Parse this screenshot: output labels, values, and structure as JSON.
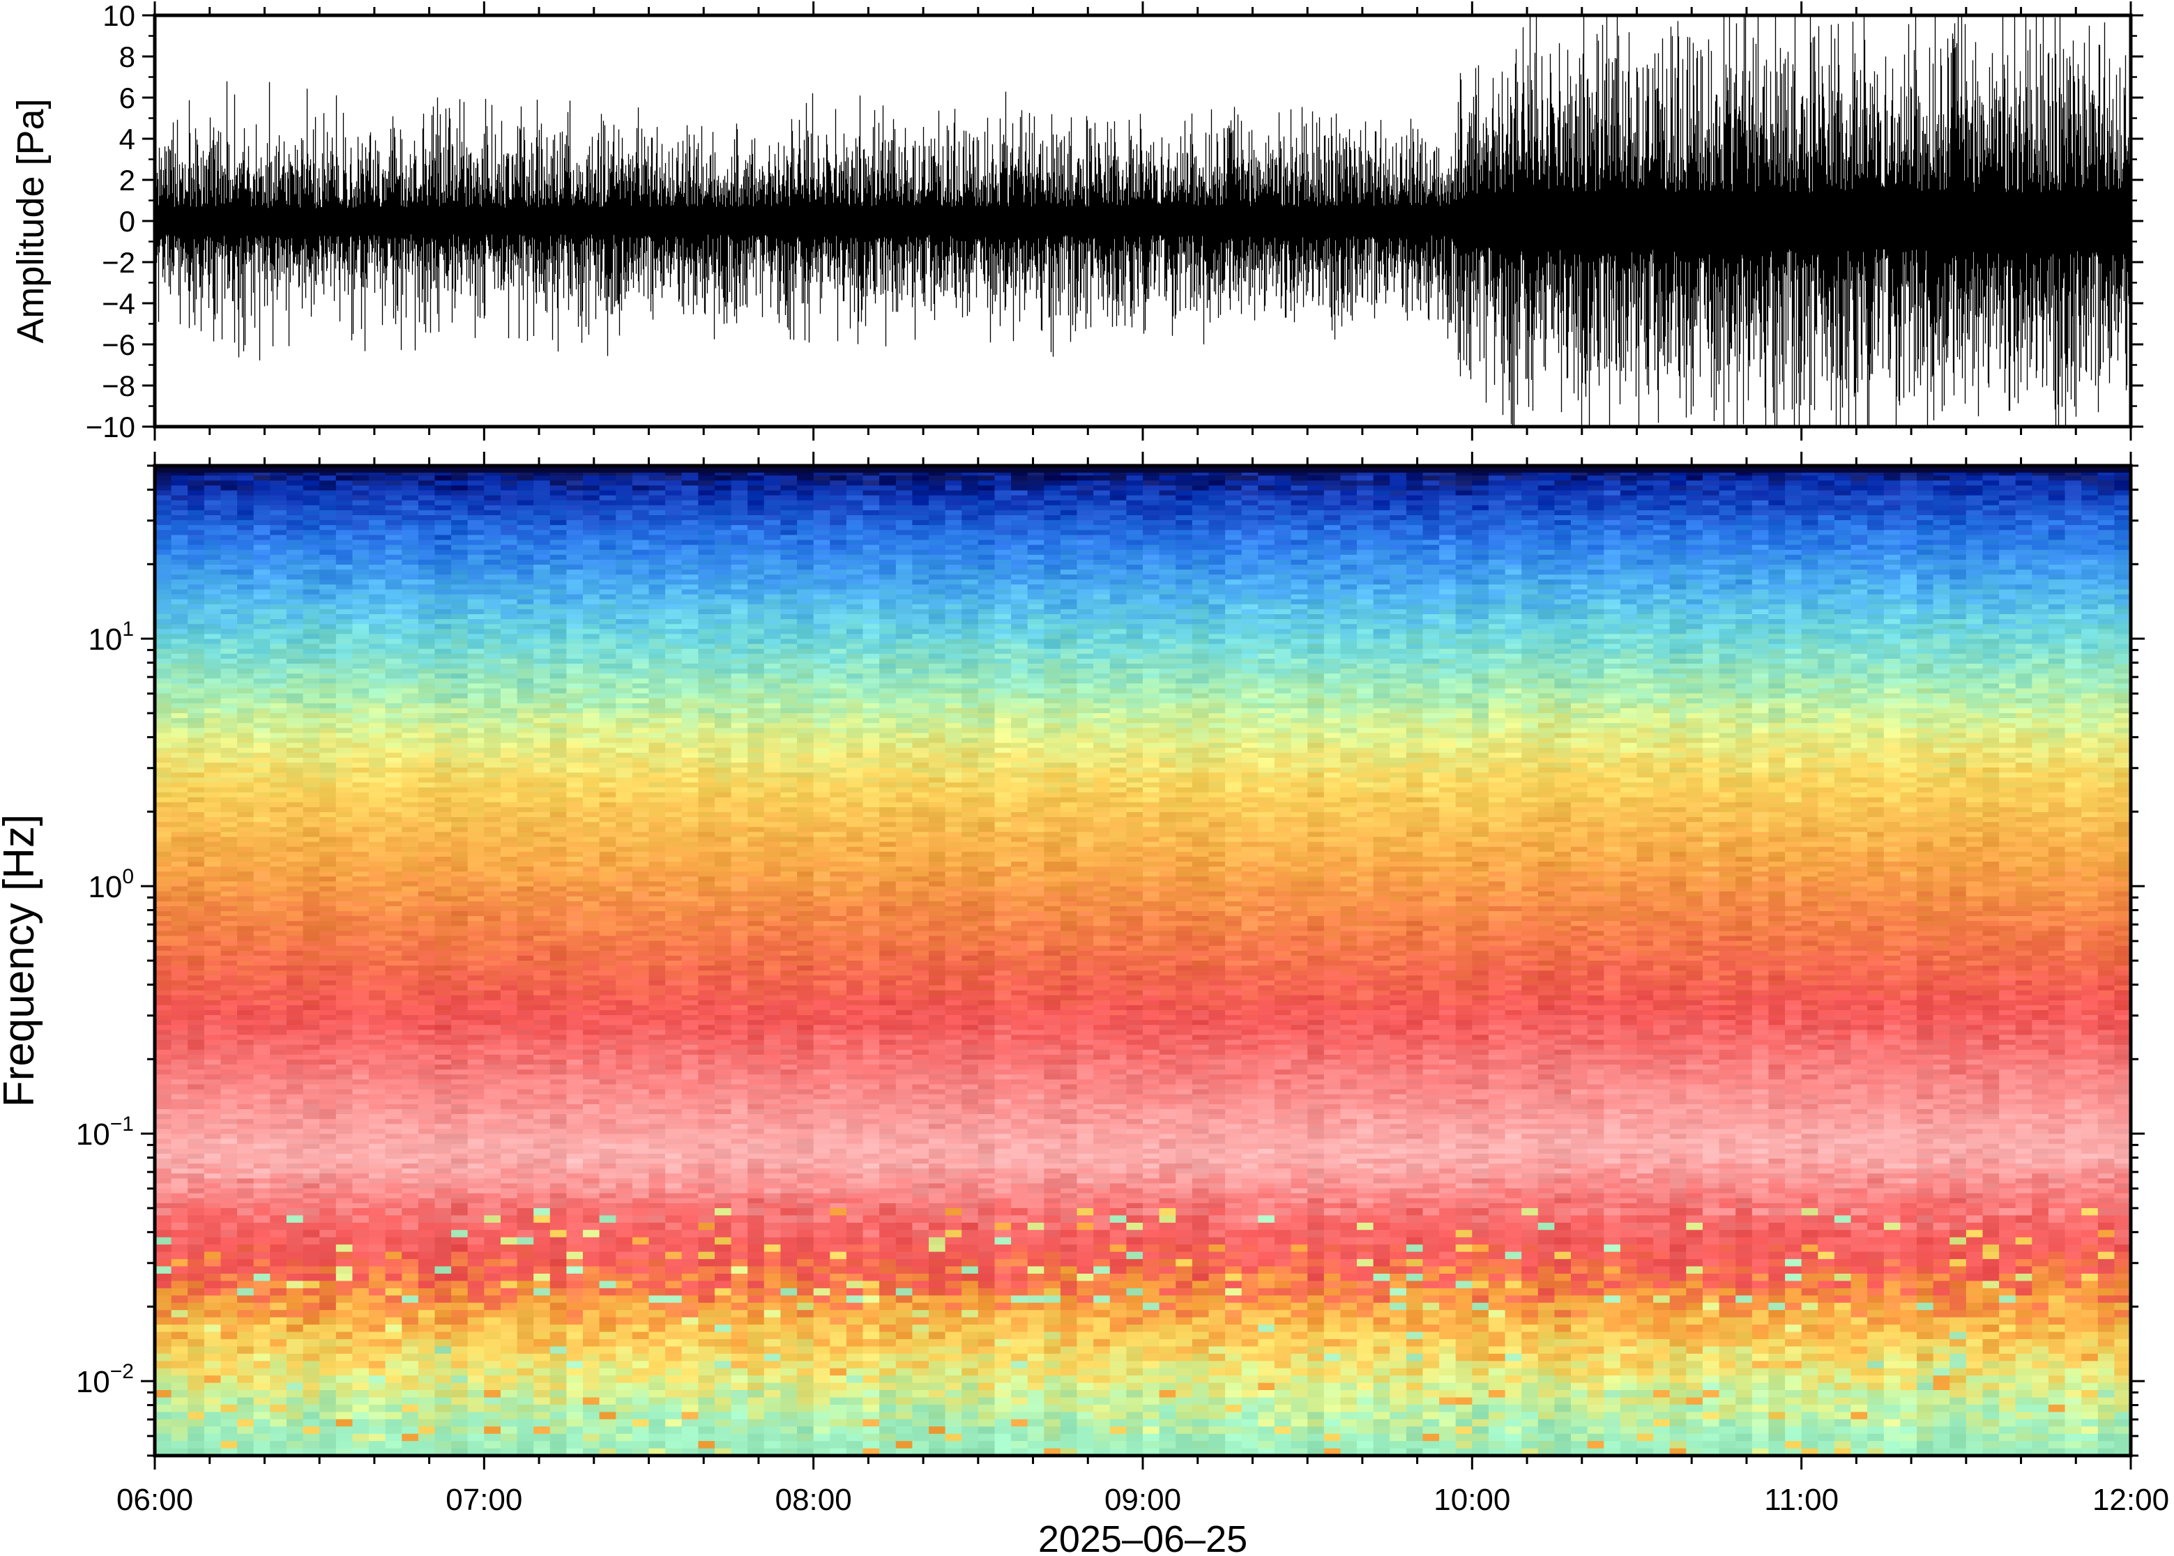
{
  "chart_data": [
    {
      "type": "line",
      "title": "",
      "xlabel": "",
      "ylabel": "Amplitude [Pa]",
      "ylim": [
        -10,
        10
      ],
      "y_ticks": [
        {
          "value": -10,
          "label": "−10"
        },
        {
          "value": -8,
          "label": "−8"
        },
        {
          "value": -6,
          "label": "−6"
        },
        {
          "value": -4,
          "label": "−4"
        },
        {
          "value": -2,
          "label": "−2"
        },
        {
          "value": 0,
          "label": "0"
        },
        {
          "value": 2,
          "label": "2"
        },
        {
          "value": 4,
          "label": "4"
        },
        {
          "value": 6,
          "label": "6"
        },
        {
          "value": 8,
          "label": "8"
        },
        {
          "value": 10,
          "label": "10"
        }
      ],
      "xlim": [
        "06:00",
        "12:00"
      ],
      "grid": false,
      "series_color": "#000000",
      "envelope": {
        "x": [
          "06:00",
          "06:30",
          "07:00",
          "07:30",
          "08:00",
          "08:30",
          "09:00",
          "09:30",
          "09:55",
          "10:00",
          "10:30",
          "11:00",
          "11:30",
          "12:00"
        ],
        "typical_amplitude": [
          2.5,
          2.5,
          2.6,
          2.6,
          2.7,
          2.7,
          2.8,
          2.8,
          2.8,
          5.0,
          5.5,
          5.5,
          5.5,
          5.5
        ],
        "max_spike": [
          7,
          7,
          6,
          6,
          6,
          6,
          5,
          5,
          5,
          9,
          10,
          9.5,
          9,
          9
        ]
      }
    },
    {
      "type": "heatmap",
      "title": "",
      "xlabel": "2025–06–25",
      "ylabel": "Frequency [Hz]",
      "y_scale": "log",
      "ylim": [
        0.005,
        50
      ],
      "y_ticks": [
        {
          "value": 0.01,
          "base": "10",
          "exp": "−2"
        },
        {
          "value": 0.1,
          "base": "10",
          "exp": "−1"
        },
        {
          "value": 1,
          "base": "10",
          "exp": "0"
        },
        {
          "value": 10,
          "base": "10",
          "exp": "1"
        }
      ],
      "x_ticks": [
        "06:00",
        "07:00",
        "08:00",
        "09:00",
        "10:00",
        "11:00",
        "12:00"
      ],
      "xlim": [
        "06:00",
        "12:00"
      ],
      "colormap": [
        "#0a1e8c",
        "#1a5adc",
        "#3c9bf0",
        "#6ed2e6",
        "#a8eebe",
        "#e0f08e",
        "#fbd45c",
        "#f9a63e",
        "#f46c4a",
        "#f45a5a",
        "#fc8c8c",
        "#ffb2b2"
      ],
      "band_profile": [
        {
          "freq_hz": 50,
          "color": "#08105a"
        },
        {
          "freq_hz": 40,
          "color": "#0c2fb0"
        },
        {
          "freq_hz": 25,
          "color": "#2a78ea"
        },
        {
          "freq_hz": 15,
          "color": "#4fb4f0"
        },
        {
          "freq_hz": 10,
          "color": "#6ed8dc"
        },
        {
          "freq_hz": 6,
          "color": "#a8eeb6"
        },
        {
          "freq_hz": 4,
          "color": "#e2f28c"
        },
        {
          "freq_hz": 2.5,
          "color": "#fbd45c"
        },
        {
          "freq_hz": 1.2,
          "color": "#f9a848"
        },
        {
          "freq_hz": 0.6,
          "color": "#f47a48"
        },
        {
          "freq_hz": 0.3,
          "color": "#f45656"
        },
        {
          "freq_hz": 0.15,
          "color": "#fc8a8a"
        },
        {
          "freq_hz": 0.08,
          "color": "#ffb4b4"
        },
        {
          "freq_hz": 0.045,
          "color": "#f86a6a"
        },
        {
          "freq_hz": 0.03,
          "color": "#f45656"
        },
        {
          "freq_hz": 0.02,
          "color": "#f9a03e"
        },
        {
          "freq_hz": 0.013,
          "color": "#fbd860"
        },
        {
          "freq_hz": 0.009,
          "color": "#d8f290"
        },
        {
          "freq_hz": 0.006,
          "color": "#9ceec0"
        }
      ]
    }
  ]
}
